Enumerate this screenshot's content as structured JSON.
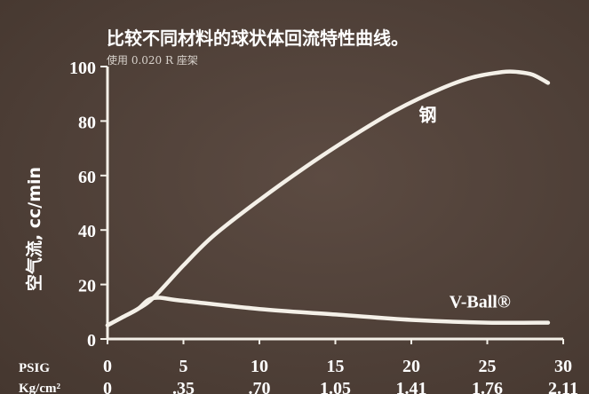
{
  "chart_data": {
    "type": "line",
    "title": "比较不同材料的球状体回流特性曲线。",
    "subtitle": "使用 0.020 R 座架",
    "ylabel": "空气流, cc/min",
    "x_row_labels": [
      "PSIG",
      "Kg/cm²"
    ],
    "x_ticks": [
      {
        "psig": "0",
        "kgcm2": "0"
      },
      {
        "psig": "5",
        "kgcm2": ".35"
      },
      {
        "psig": "10",
        "kgcm2": ".70"
      },
      {
        "psig": "15",
        "kgcm2": "1.05"
      },
      {
        "psig": "20",
        "kgcm2": "1.41"
      },
      {
        "psig": "25",
        "kgcm2": "1.76"
      },
      {
        "psig": "30",
        "kgcm2": "2.11"
      }
    ],
    "x_tick_values": [
      0,
      5,
      10,
      15,
      20,
      25,
      30
    ],
    "y_ticks": [
      "0",
      "20",
      "40",
      "60",
      "80",
      "100"
    ],
    "y_tick_values": [
      0,
      20,
      40,
      60,
      80,
      100
    ],
    "xlim": [
      0,
      30
    ],
    "ylim": [
      0,
      100
    ],
    "grid": false,
    "series": [
      {
        "name": "钢",
        "x": [
          0,
          1,
          2,
          3,
          5,
          7,
          10,
          13,
          16,
          19,
          22,
          24,
          26,
          27,
          28,
          29
        ],
        "y": [
          5,
          8,
          11,
          15,
          27,
          38,
          51,
          63,
          74,
          84,
          92,
          96,
          98,
          98,
          97,
          94
        ]
      },
      {
        "name": "V-Ball®",
        "x": [
          0,
          1,
          2,
          3,
          5,
          10,
          15,
          20,
          25,
          29
        ],
        "y": [
          5,
          8,
          11,
          15,
          14,
          11,
          9,
          7,
          6,
          6
        ]
      }
    ],
    "colors": {
      "line": "#f4f0e8",
      "axis": "#f4f0e8",
      "text": "#ffffff",
      "background": "#53433b"
    }
  }
}
